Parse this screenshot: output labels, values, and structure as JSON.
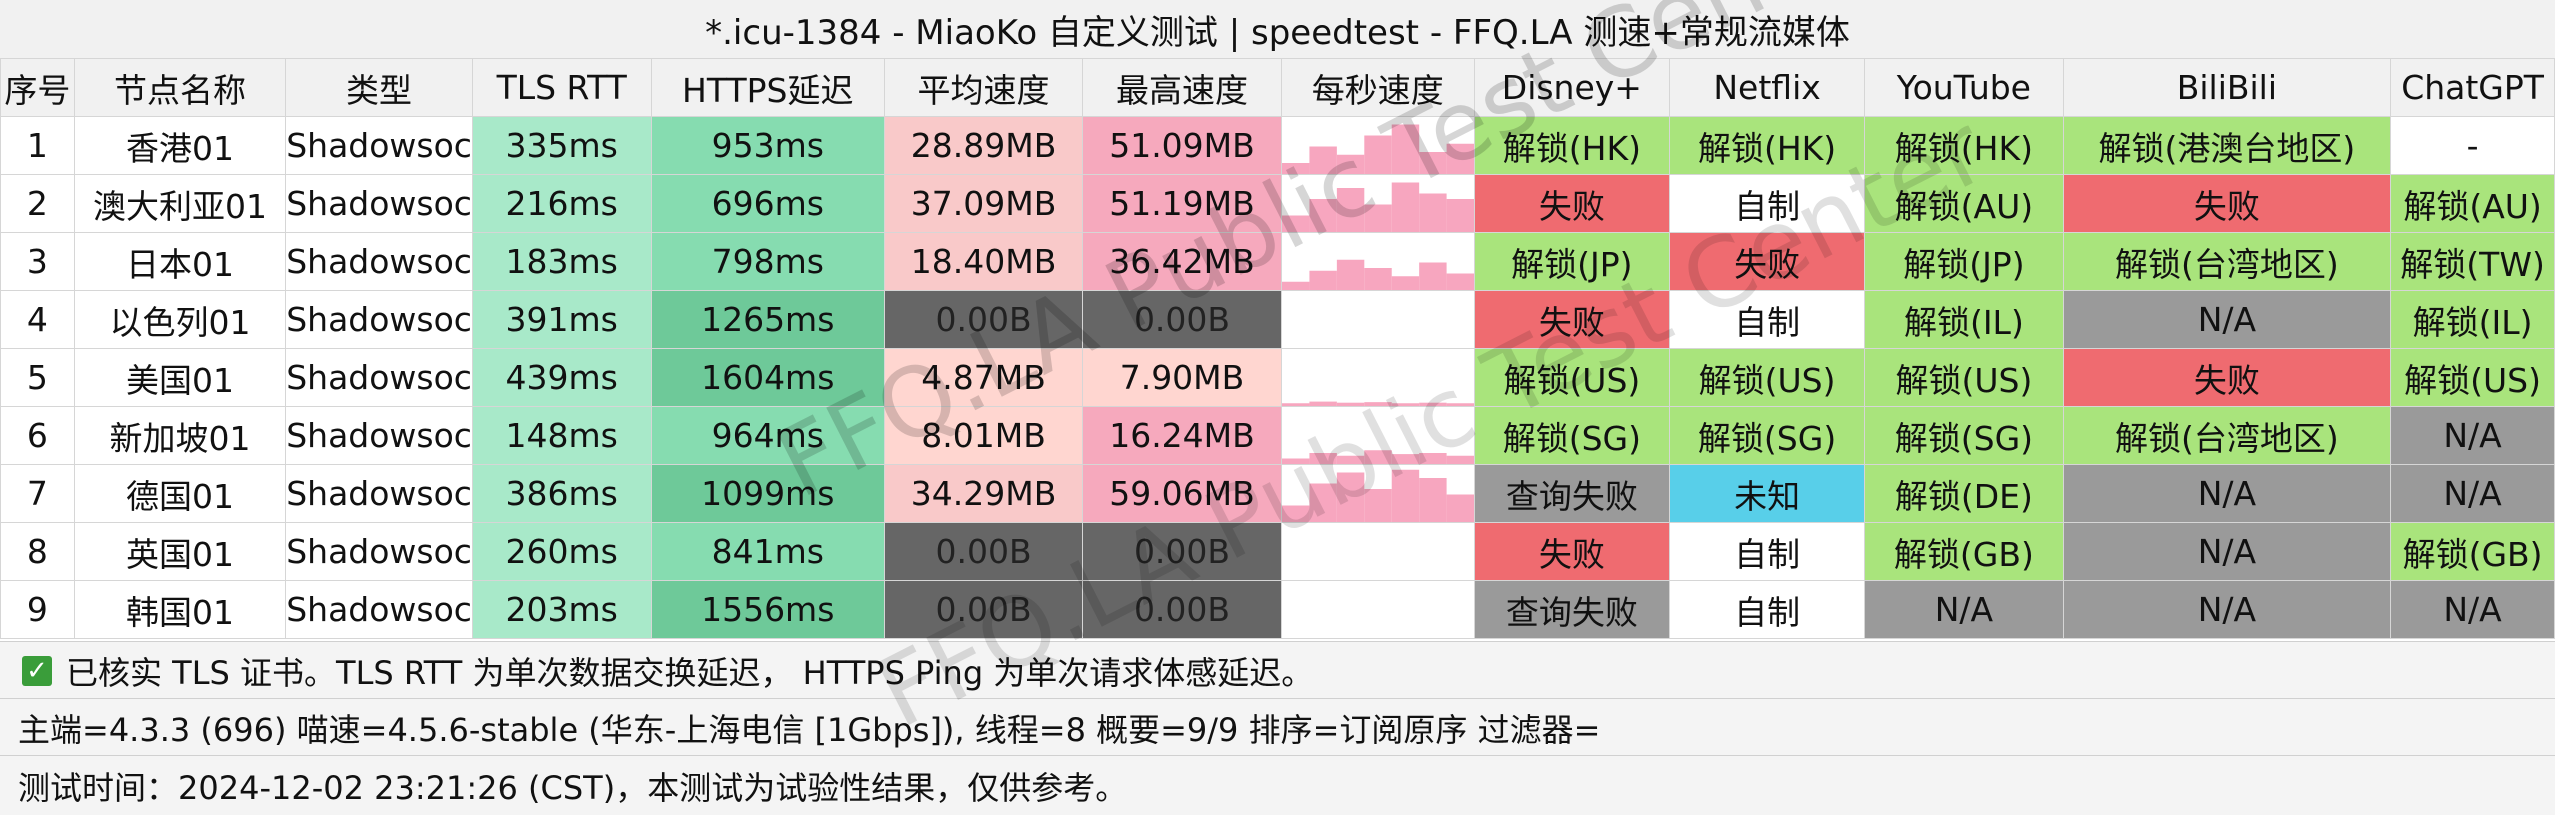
{
  "title": "*.icu-1384 - MiaoKo 自定义测试 | speedtest - FFQ.LA 测速+常规流媒体",
  "columns": [
    "序号",
    "节点名称",
    "类型",
    "TLS RTT",
    "HTTPS延迟",
    "平均速度",
    "最高速度",
    "每秒速度",
    "Disney+",
    "Netflix",
    "YouTube",
    "BiliBili",
    "ChatGPT"
  ],
  "rows": [
    {
      "idx": "1",
      "name": "香港01",
      "type": "Shadowsocks",
      "rtt": "335ms",
      "https": "953ms",
      "avg": "28.89MB",
      "max": "51.09MB",
      "disney": "解锁(HK)",
      "netflix": "解锁(HK)",
      "youtube": "解锁(HK)",
      "bili": "解锁(港澳台地区)",
      "gpt": "-"
    },
    {
      "idx": "2",
      "name": "澳大利亚01",
      "type": "Shadowsocks",
      "rtt": "216ms",
      "https": "696ms",
      "avg": "37.09MB",
      "max": "51.19MB",
      "disney": "失败",
      "netflix": "自制",
      "youtube": "解锁(AU)",
      "bili": "失败",
      "gpt": "解锁(AU)"
    },
    {
      "idx": "3",
      "name": "日本01",
      "type": "Shadowsocks",
      "rtt": "183ms",
      "https": "798ms",
      "avg": "18.40MB",
      "max": "36.42MB",
      "disney": "解锁(JP)",
      "netflix": "失败",
      "youtube": "解锁(JP)",
      "bili": "解锁(台湾地区)",
      "gpt": "解锁(TW)"
    },
    {
      "idx": "4",
      "name": "以色列01",
      "type": "Shadowsocks",
      "rtt": "391ms",
      "https": "1265ms",
      "avg": "0.00B",
      "max": "0.00B",
      "disney": "失败",
      "netflix": "自制",
      "youtube": "解锁(IL)",
      "bili": "N/A",
      "gpt": "解锁(IL)"
    },
    {
      "idx": "5",
      "name": "美国01",
      "type": "Shadowsocks",
      "rtt": "439ms",
      "https": "1604ms",
      "avg": "4.87MB",
      "max": "7.90MB",
      "disney": "解锁(US)",
      "netflix": "解锁(US)",
      "youtube": "解锁(US)",
      "bili": "失败",
      "gpt": "解锁(US)"
    },
    {
      "idx": "6",
      "name": "新加坡01",
      "type": "Shadowsocks",
      "rtt": "148ms",
      "https": "964ms",
      "avg": "8.01MB",
      "max": "16.24MB",
      "disney": "解锁(SG)",
      "netflix": "解锁(SG)",
      "youtube": "解锁(SG)",
      "bili": "解锁(台湾地区)",
      "gpt": "N/A"
    },
    {
      "idx": "7",
      "name": "德国01",
      "type": "Shadowsocks",
      "rtt": "386ms",
      "https": "1099ms",
      "avg": "34.29MB",
      "max": "59.06MB",
      "disney": "查询失败",
      "netflix": "未知",
      "youtube": "解锁(DE)",
      "bili": "N/A",
      "gpt": "N/A"
    },
    {
      "idx": "8",
      "name": "英国01",
      "type": "Shadowsocks",
      "rtt": "260ms",
      "https": "841ms",
      "avg": "0.00B",
      "max": "0.00B",
      "disney": "失败",
      "netflix": "自制",
      "youtube": "解锁(GB)",
      "bili": "N/A",
      "gpt": "解锁(GB)"
    },
    {
      "idx": "9",
      "name": "韩国01",
      "type": "Shadowsocks",
      "rtt": "203ms",
      "https": "1556ms",
      "avg": "0.00B",
      "max": "0.00B",
      "disney": "查询失败",
      "netflix": "自制",
      "youtube": "N/A",
      "bili": "N/A",
      "gpt": "N/A"
    }
  ],
  "colors": {
    "unlock": "#a9e47c",
    "fail": "#ef6b70",
    "selfmade": "#ffffff",
    "na": "#9a9a9a",
    "unknown": "#58cfe9",
    "zero_speed": "#666666"
  },
  "footer": {
    "line1": "已核实 TLS 证书。TLS RTT 为单次数据交换延迟， HTTPS Ping 为单次请求体感延迟。",
    "line2": "主端=4.3.3 (696) 喵速=4.5.6-stable (华东-上海电信 [1Gbps]), 线程=8 概要=9/9 排序=订阅原序 过滤器=",
    "line3": "测试时间：2024-12-02 23:21:26 (CST)，本测试为试验性结果，仅供参考。"
  },
  "watermark": "FFQ.LA Public Test Center"
}
